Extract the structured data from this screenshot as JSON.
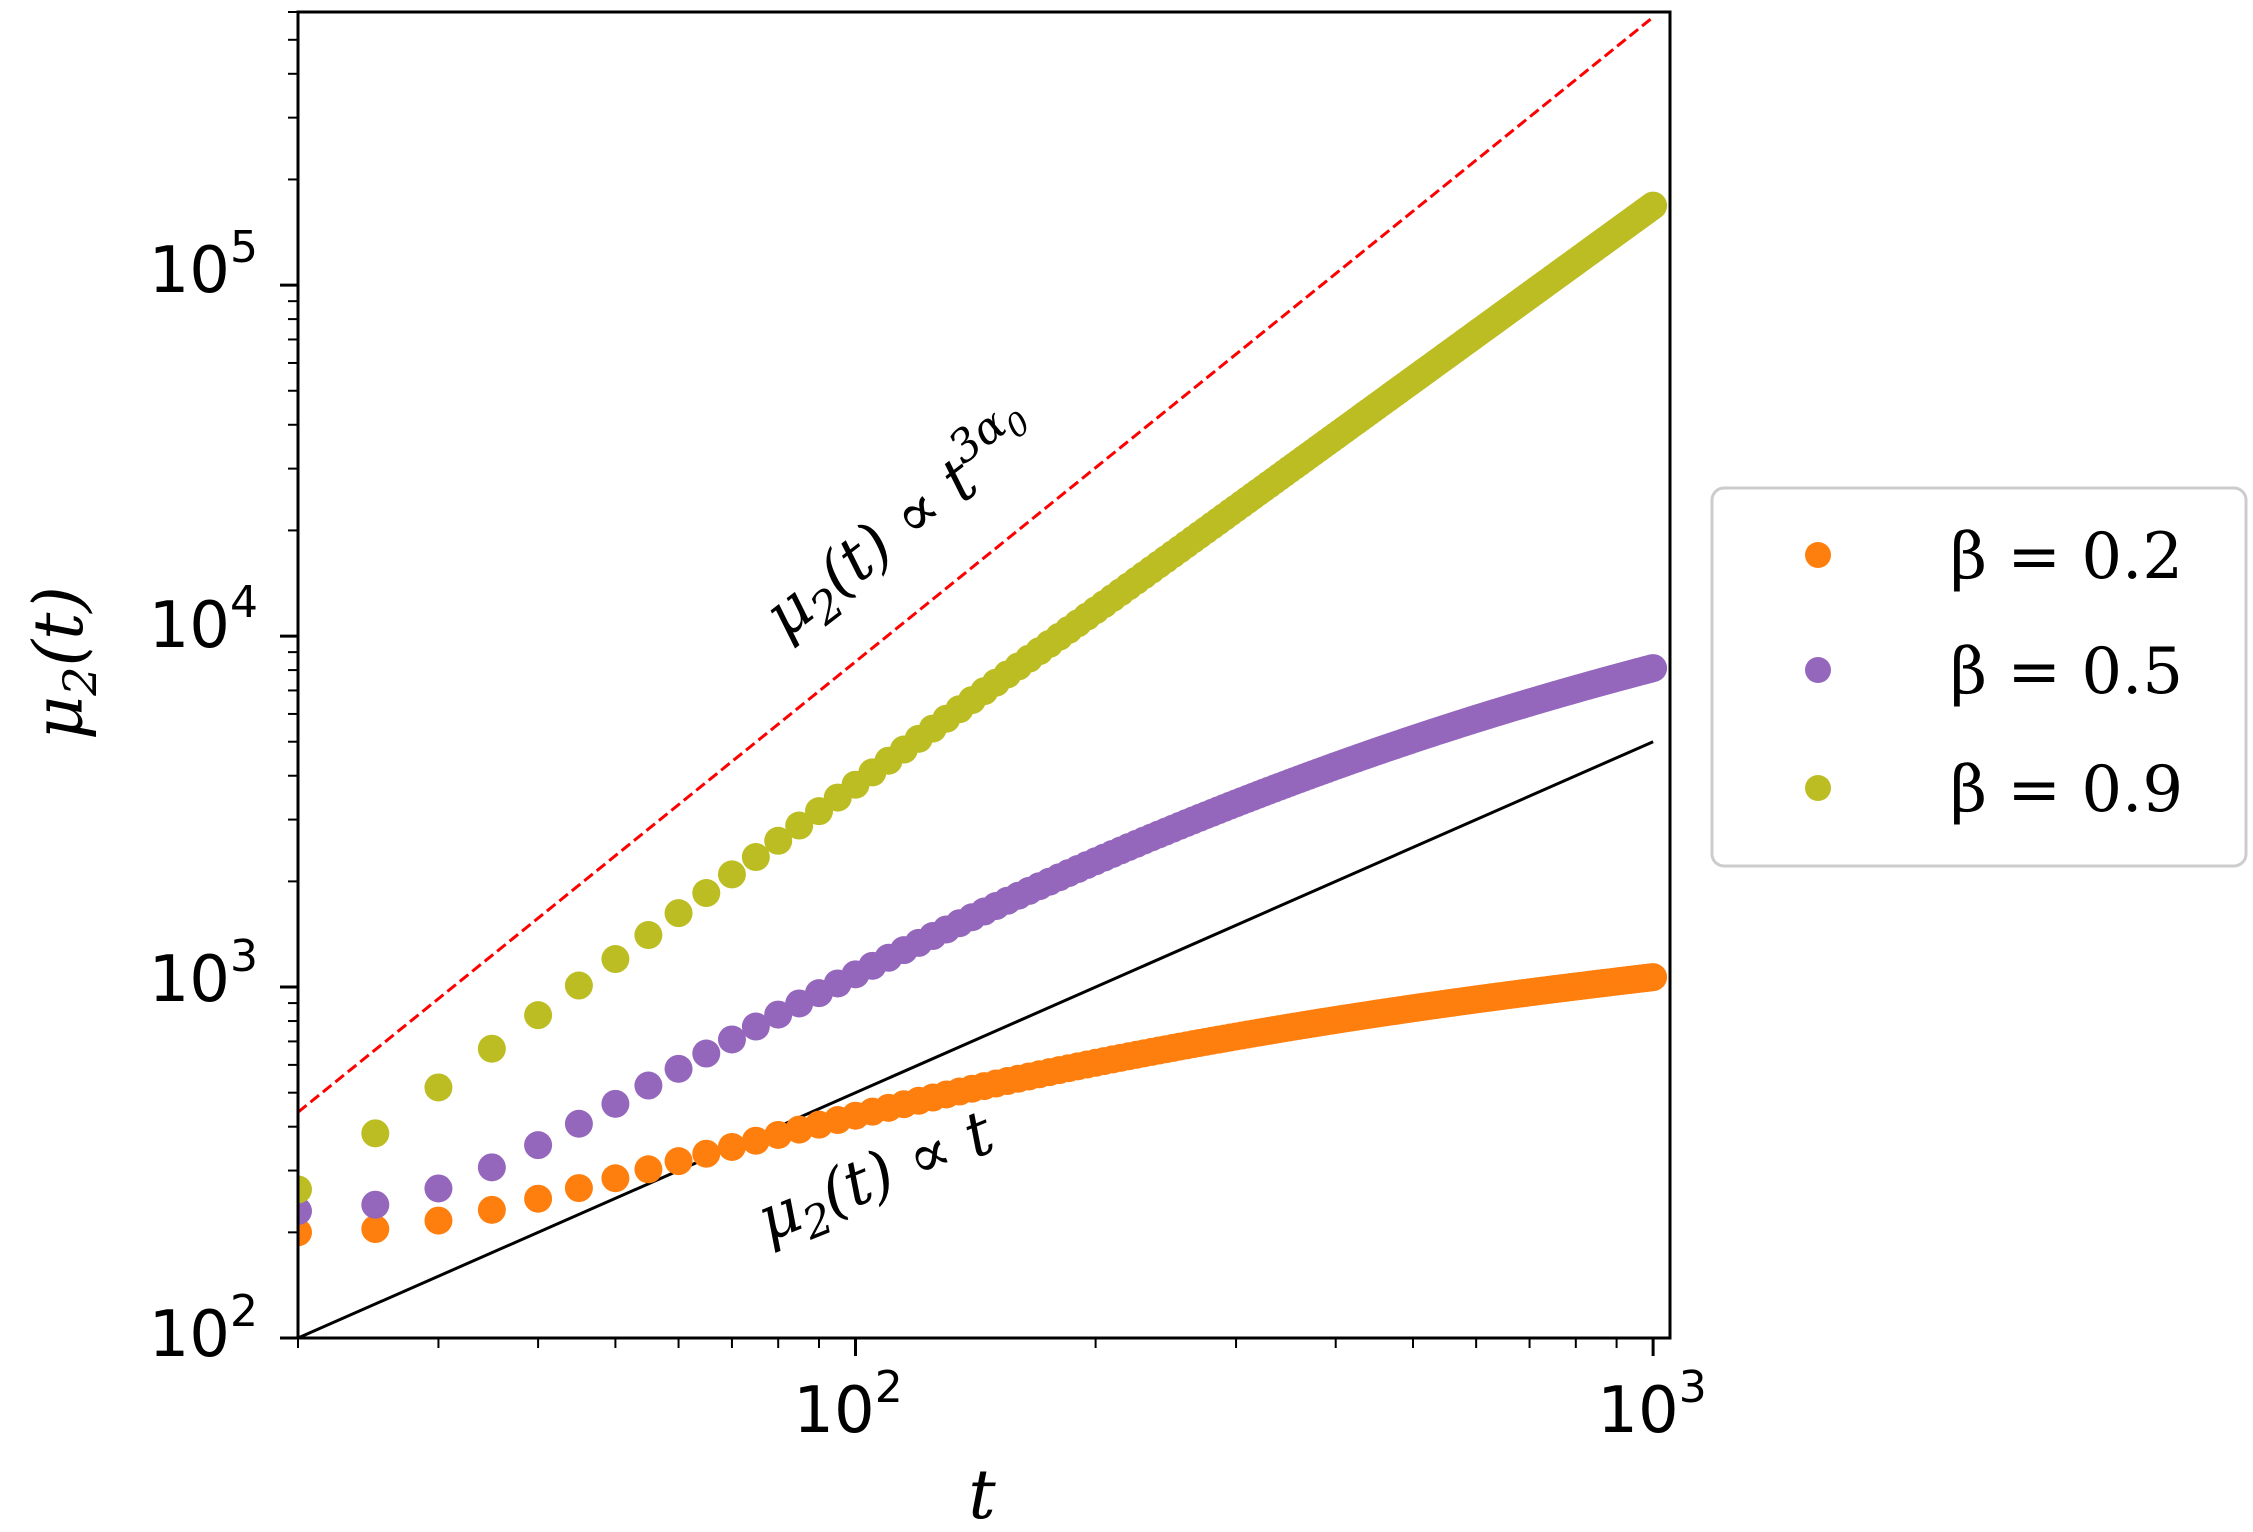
{
  "chart_data": {
    "type": "scatter",
    "title": "",
    "xlabel": "t",
    "ylabel_main": "μ",
    "ylabel_sub": "2",
    "ylabel_tail": "(t)",
    "xscale": "log",
    "yscale": "log",
    "xlim": [
      20,
      1050
    ],
    "ylim": [
      100,
      600000
    ],
    "x_ticks": [
      {
        "value": 100,
        "base": "10",
        "exp": "2"
      },
      {
        "value": 1000,
        "base": "10",
        "exp": "3"
      }
    ],
    "y_ticks": [
      {
        "value": 100,
        "base": "10",
        "exp": "2"
      },
      {
        "value": 1000,
        "base": "10",
        "exp": "3"
      },
      {
        "value": 10000,
        "base": "10",
        "exp": "4"
      },
      {
        "value": 100000,
        "base": "10",
        "exp": "5"
      }
    ],
    "legend_position": "right-outside",
    "legend_entries": [
      {
        "label": "β = 0.2",
        "color": "#ff7f0e"
      },
      {
        "label": "β = 0.5",
        "color": "#9467bd"
      },
      {
        "label": "β = 0.9",
        "color": "#bcbd22"
      }
    ],
    "series": [
      {
        "name": "β = 0.2",
        "color": "#ff7f0e",
        "t_min": 20,
        "t_max": 1000,
        "step": 5,
        "model": "saturating",
        "t0": 20,
        "y0": 200,
        "A": 0.73,
        "k": 0.00495,
        "gamma": 0.255
      },
      {
        "name": "β = 0.5",
        "color": "#9467bd",
        "t_min": 20,
        "t_max": 1000,
        "step": 5,
        "model": "saturating",
        "t0": 20,
        "y0": 230,
        "A": 1.0,
        "k": 0.00335,
        "gamma": 0.52
      },
      {
        "name": "β = 0.9",
        "color": "#bcbd22",
        "t_min": 20,
        "t_max": 1000,
        "step": 5,
        "model": "power",
        "t0": 20,
        "y0": 265,
        "exponent": 1.65
      }
    ],
    "reference_lines": [
      {
        "name": "t^{3α0}",
        "style": "dashed",
        "color": "#ff0000",
        "points": [
          [
            20,
            440
          ],
          [
            1000,
            580000
          ]
        ]
      },
      {
        "name": "t",
        "style": "solid",
        "color": "#000000",
        "points": [
          [
            20,
            100
          ],
          [
            1000,
            5000
          ]
        ]
      }
    ],
    "annotations": [
      {
        "id": "upper",
        "main": "μ",
        "sub": "2",
        "mid": "(t) ∝ t",
        "sup": "3α",
        "supsub": "0"
      },
      {
        "id": "lower",
        "main": "μ",
        "sub": "2",
        "mid": "(t) ∝ t"
      }
    ]
  }
}
